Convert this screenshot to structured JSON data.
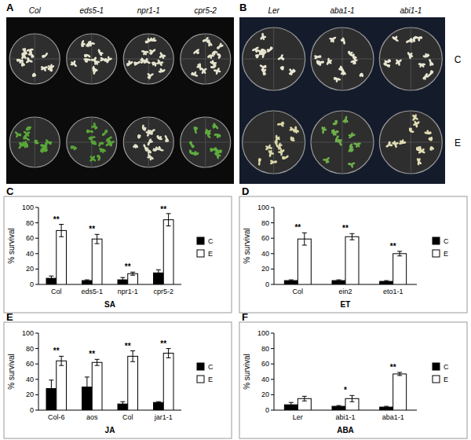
{
  "photos": [
    {
      "panel": "A",
      "labels": [
        "Col",
        "eds5-1",
        "npr1-1",
        "cpr5-2"
      ]
    },
    {
      "panel": "B",
      "labels": [
        "Ler",
        "aba1-1",
        "abi1-1"
      ],
      "row_labels": [
        "C",
        "E"
      ]
    }
  ],
  "chart_data": [
    {
      "type": "bar",
      "panel": "C",
      "x_label": "SA",
      "y_label": "% survival",
      "categories": [
        "Col",
        "eds5-1",
        "npr1-1",
        "cpr5-2"
      ],
      "series": [
        {
          "name": "C",
          "color": "#000000",
          "values": [
            8,
            5,
            6,
            15
          ],
          "errors": [
            3,
            1,
            3,
            4
          ]
        },
        {
          "name": "E",
          "color": "#ffffff",
          "values": [
            70,
            59,
            14,
            84
          ],
          "errors": [
            8,
            6,
            2,
            8
          ]
        }
      ],
      "significance": [
        "**",
        "**",
        "**",
        "**"
      ],
      "ylim": [
        0,
        100
      ],
      "yticks": [
        0,
        20,
        40,
        60,
        80,
        100
      ],
      "grid": false,
      "legend": "right"
    },
    {
      "type": "bar",
      "panel": "D",
      "x_label": "ET",
      "y_label": "% survival",
      "categories": [
        "Col",
        "ein2",
        "eto1-1"
      ],
      "series": [
        {
          "name": "C",
          "color": "#000000",
          "values": [
            5,
            5,
            4
          ],
          "errors": [
            1,
            1,
            1
          ]
        },
        {
          "name": "E",
          "color": "#ffffff",
          "values": [
            59,
            62,
            40
          ],
          "errors": [
            8,
            4,
            3
          ]
        }
      ],
      "significance": [
        "**",
        "**",
        "**"
      ],
      "ylim": [
        0,
        100
      ],
      "yticks": [
        0,
        20,
        40,
        60,
        80,
        100
      ],
      "grid": false,
      "legend": "right"
    },
    {
      "type": "bar",
      "panel": "E",
      "x_label": "JA",
      "y_label": "% survival",
      "categories": [
        "Col-6",
        "aos",
        "Col",
        "jar1-1"
      ],
      "series": [
        {
          "name": "C",
          "color": "#000000",
          "values": [
            28,
            30,
            8,
            10
          ],
          "errors": [
            11,
            13,
            3,
            1
          ]
        },
        {
          "name": "E",
          "color": "#ffffff",
          "values": [
            64,
            62,
            70,
            74
          ],
          "errors": [
            6,
            4,
            7,
            6
          ]
        }
      ],
      "significance": [
        "**",
        "**",
        "**",
        "**"
      ],
      "ylim": [
        0,
        100
      ],
      "yticks": [
        0,
        20,
        40,
        60,
        80,
        100
      ],
      "grid": false,
      "legend": "right"
    },
    {
      "type": "bar",
      "panel": "F",
      "x_label": "ABA",
      "y_label": "% survival",
      "categories": [
        "Ler",
        "abi1-1",
        "aba1-1"
      ],
      "series": [
        {
          "name": "C",
          "color": "#000000",
          "values": [
            7,
            5,
            4
          ],
          "errors": [
            3,
            1,
            1
          ]
        },
        {
          "name": "E",
          "color": "#ffffff",
          "values": [
            15,
            15,
            47
          ],
          "errors": [
            3,
            4,
            2
          ]
        }
      ],
      "significance": [
        null,
        "*",
        "**"
      ],
      "ylim": [
        0,
        100
      ],
      "yticks": [
        0,
        20,
        40,
        60,
        80,
        100
      ],
      "grid": false,
      "legend": "right"
    }
  ]
}
